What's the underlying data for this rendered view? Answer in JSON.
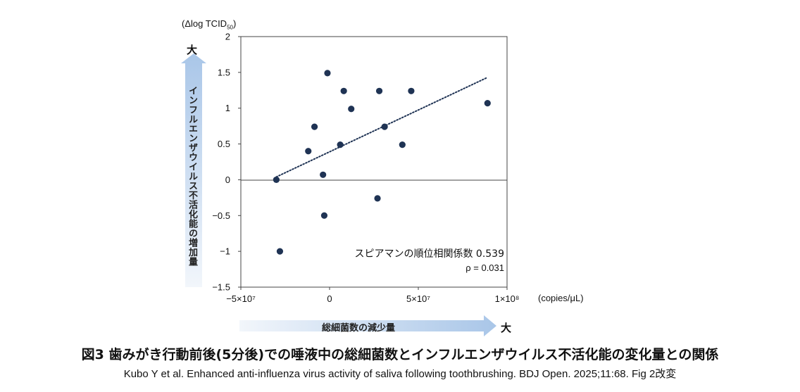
{
  "figure": {
    "title": "図3 歯みがき行動前後(5分後)での唾液中の総細菌数とインフルエンザウイルス不活化能の変化量との関係",
    "citation": "Kubo Y et al. Enhanced anti-influenza virus activity of saliva following toothbrushing. BDJ Open. 2025;11:68. Fig 2改変"
  },
  "axes": {
    "y_unit_prefix": "(Δlog TCID",
    "y_unit_sub": "50",
    "y_unit_suffix": ")",
    "y_arrow_label": "インフルエンザウイルス不活化能の増加量",
    "y_arrow_end": "大",
    "x_arrow_label": "総細菌数の減少量",
    "x_arrow_end": "大",
    "x_unit": "(copies/μL)"
  },
  "stats": {
    "line1": "スピアマンの順位相関係数 0.539",
    "line2": "ρ = 0.031"
  },
  "colors": {
    "marker": "#1f3354",
    "trend": "#1f3354",
    "arrow_start": "#f2f6fb",
    "arrow_end": "#a9c6e8"
  },
  "chart_data": {
    "type": "scatter",
    "xlim": [
      -50000000,
      100000000
    ],
    "ylim": [
      -1.5,
      2
    ],
    "x_tick_values": [
      -50000000,
      0,
      50000000,
      100000000
    ],
    "x_tick_labels": [
      "−5×10⁷",
      "0",
      "5×10⁷",
      "1×10⁸"
    ],
    "y_tick_values": [
      2,
      1.5,
      1,
      0.5,
      0,
      -0.5,
      -1,
      -1.5
    ],
    "y_tick_labels": [
      "2",
      "1.5",
      "1",
      "0.5",
      "0",
      "−0.5",
      "−1",
      "−1.5"
    ],
    "grid": false,
    "points": [
      {
        "x": -30000000,
        "y": 0
      },
      {
        "x": -28000000,
        "y": -1
      },
      {
        "x": -12000000,
        "y": 0.4
      },
      {
        "x": -8500000,
        "y": 0.74
      },
      {
        "x": -3700000,
        "y": 0.07
      },
      {
        "x": -3000000,
        "y": -0.5
      },
      {
        "x": -1200000,
        "y": 1.49
      },
      {
        "x": 6000000,
        "y": 0.49
      },
      {
        "x": 8000000,
        "y": 1.24
      },
      {
        "x": 12200000,
        "y": 0.99
      },
      {
        "x": 27000000,
        "y": -0.26
      },
      {
        "x": 28000000,
        "y": 1.24
      },
      {
        "x": 31000000,
        "y": 0.74
      },
      {
        "x": 41000000,
        "y": 0.49
      },
      {
        "x": 46000000,
        "y": 1.24
      },
      {
        "x": 89000000,
        "y": 1.07
      }
    ],
    "trendline": {
      "style": "dotted",
      "x0": -30000000,
      "y0": 0.04,
      "x1": 89000000,
      "y1": 1.43
    }
  }
}
